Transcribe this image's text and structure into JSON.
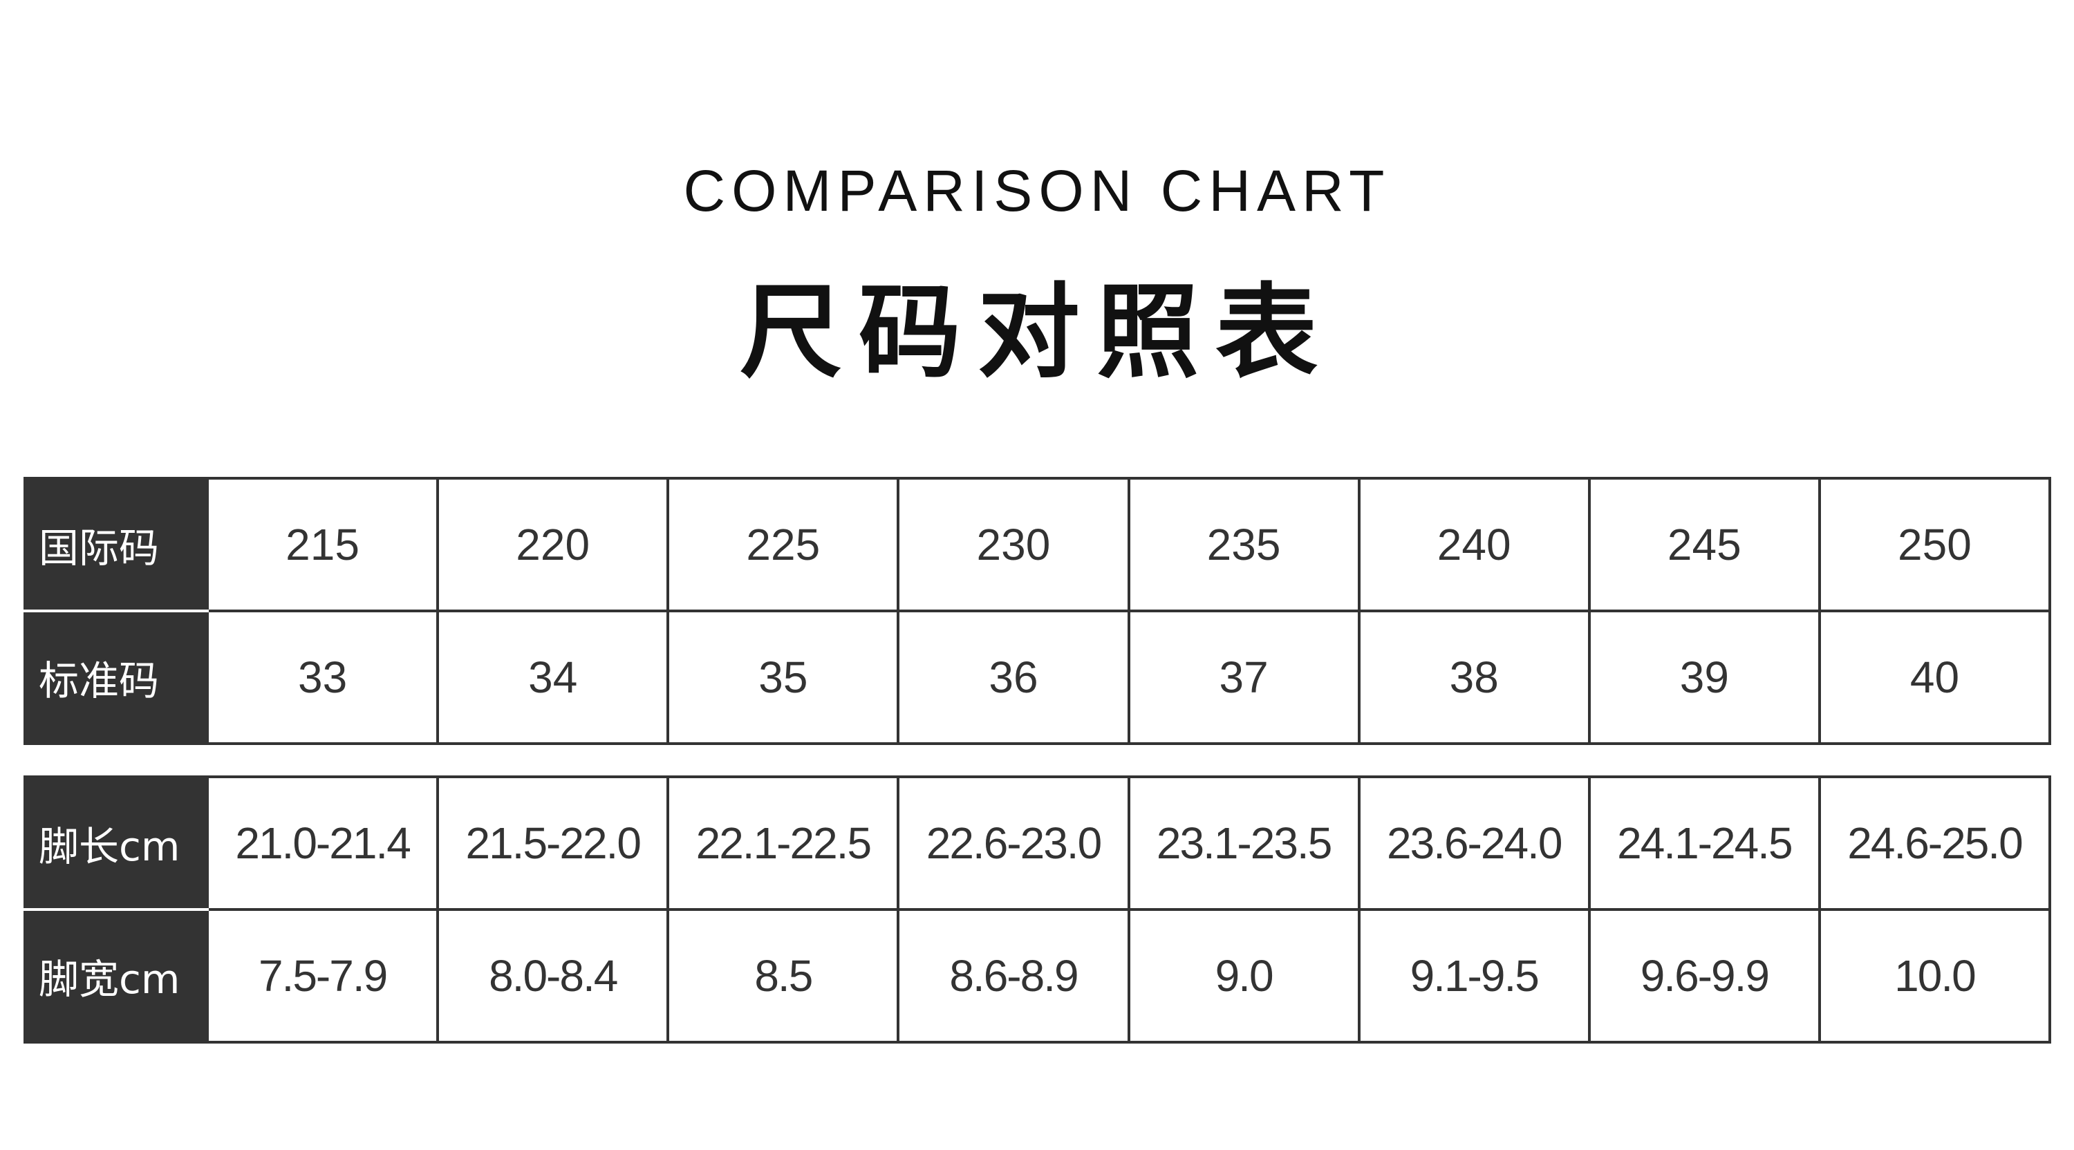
{
  "subtitle": "COMPARISON CHART",
  "title": "尺码对照表",
  "table1": {
    "rows": [
      {
        "label": "国际码",
        "values": [
          "215",
          "220",
          "225",
          "230",
          "235",
          "240",
          "245",
          "250"
        ]
      },
      {
        "label": "标准码",
        "values": [
          "33",
          "34",
          "35",
          "36",
          "37",
          "38",
          "39",
          "40"
        ]
      }
    ]
  },
  "table2": {
    "rows": [
      {
        "label": "脚长cm",
        "values": [
          "21.0-21.4",
          "21.5-22.0",
          "22.1-22.5",
          "22.6-23.0",
          "23.1-23.5",
          "23.6-24.0",
          "24.1-24.5",
          "24.6-25.0"
        ]
      },
      {
        "label": "脚宽cm",
        "values": [
          "7.5-7.9",
          "8.0-8.4",
          "8.5",
          "8.6-8.9",
          "9.0",
          "9.1-9.5",
          "9.6-9.9",
          "10.0"
        ]
      }
    ]
  },
  "colors": {
    "header_bg": "#333333",
    "border": "#333333",
    "text": "#333333"
  }
}
